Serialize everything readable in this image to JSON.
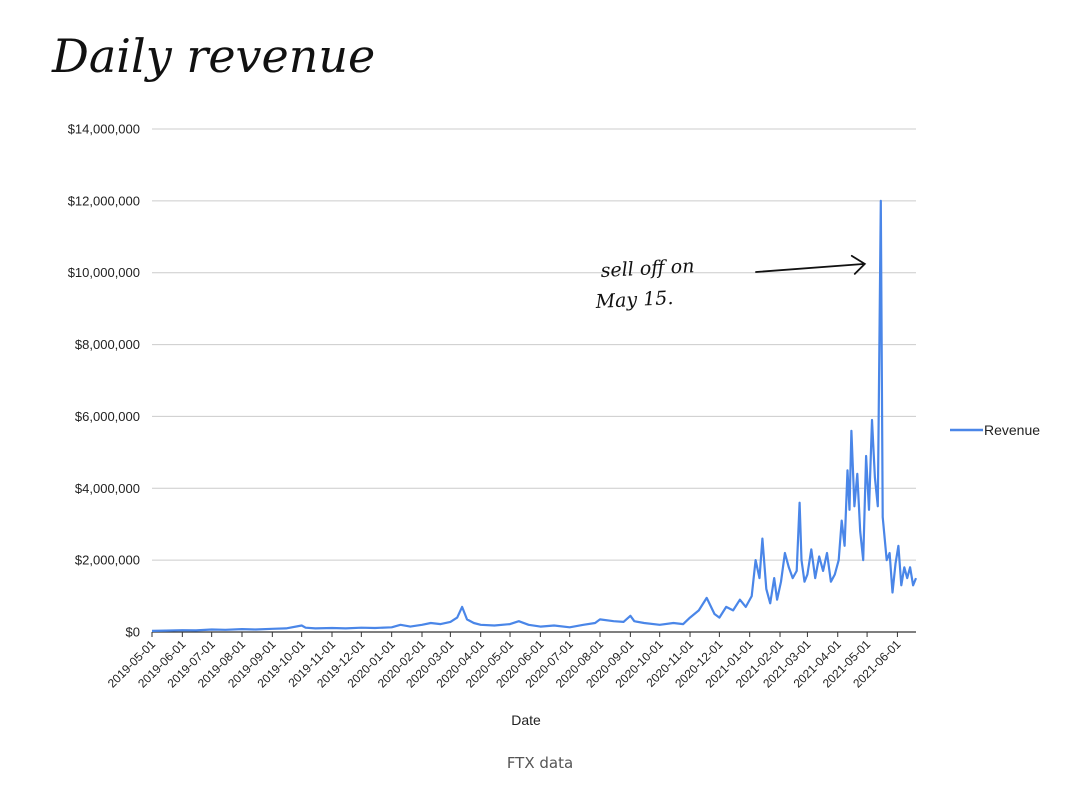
{
  "caption": "FTX data",
  "chart_data": {
    "type": "line",
    "title": "Daily revenue",
    "xlabel": "Date",
    "ylabel": "",
    "ylim": [
      0,
      14000000
    ],
    "yticks": [
      0,
      2000000,
      4000000,
      6000000,
      8000000,
      10000000,
      12000000,
      14000000
    ],
    "ytick_labels": [
      "$0",
      "$2,000,000",
      "$4,000,000",
      "$6,000,000",
      "$8,000,000",
      "$10,000,000",
      "$12,000,000",
      "$14,000,000"
    ],
    "xlim": [
      "2019-05-01",
      "2021-06-20"
    ],
    "xtick_labels": [
      "2019-05-01",
      "2019-06-01",
      "2019-07-01",
      "2019-08-01",
      "2019-09-01",
      "2019-10-01",
      "2019-11-01",
      "2019-12-01",
      "2020-01-01",
      "2020-02-01",
      "2020-03-01",
      "2020-04-01",
      "2020-05-01",
      "2020-06-01",
      "2020-07-01",
      "2020-08-01",
      "2020-09-01",
      "2020-10-01",
      "2020-11-01",
      "2020-12-01",
      "2021-01-01",
      "2021-02-01",
      "2021-03-01",
      "2021-04-01",
      "2021-05-01",
      "2021-06-01"
    ],
    "grid": true,
    "legend_position": "right",
    "annotation": {
      "text_lines": [
        "sell off on",
        "May 15."
      ],
      "points_to": [
        "2021-05-15",
        12000000
      ]
    },
    "series": [
      {
        "name": "Revenue",
        "color": "#4a86e8",
        "x": [
          "2019-05-01",
          "2019-05-15",
          "2019-06-01",
          "2019-06-15",
          "2019-07-01",
          "2019-07-15",
          "2019-08-01",
          "2019-08-15",
          "2019-09-01",
          "2019-09-15",
          "2019-10-01",
          "2019-10-05",
          "2019-10-15",
          "2019-11-01",
          "2019-11-15",
          "2019-12-01",
          "2019-12-15",
          "2020-01-01",
          "2020-01-10",
          "2020-01-20",
          "2020-02-01",
          "2020-02-10",
          "2020-02-20",
          "2020-03-01",
          "2020-03-08",
          "2020-03-13",
          "2020-03-18",
          "2020-03-25",
          "2020-04-01",
          "2020-04-15",
          "2020-05-01",
          "2020-05-10",
          "2020-05-20",
          "2020-06-01",
          "2020-06-15",
          "2020-07-01",
          "2020-07-15",
          "2020-07-27",
          "2020-08-01",
          "2020-08-15",
          "2020-08-25",
          "2020-09-01",
          "2020-09-05",
          "2020-09-15",
          "2020-10-01",
          "2020-10-15",
          "2020-10-25",
          "2020-11-01",
          "2020-11-10",
          "2020-11-18",
          "2020-11-26",
          "2020-12-01",
          "2020-12-08",
          "2020-12-15",
          "2020-12-22",
          "2020-12-28",
          "2021-01-03",
          "2021-01-07",
          "2021-01-11",
          "2021-01-14",
          "2021-01-18",
          "2021-01-22",
          "2021-01-26",
          "2021-01-29",
          "2021-02-02",
          "2021-02-06",
          "2021-02-10",
          "2021-02-14",
          "2021-02-18",
          "2021-02-21",
          "2021-02-23",
          "2021-02-26",
          "2021-03-01",
          "2021-03-05",
          "2021-03-09",
          "2021-03-13",
          "2021-03-17",
          "2021-03-21",
          "2021-03-25",
          "2021-03-29",
          "2021-04-02",
          "2021-04-05",
          "2021-04-08",
          "2021-04-11",
          "2021-04-13",
          "2021-04-15",
          "2021-04-18",
          "2021-04-21",
          "2021-04-24",
          "2021-04-27",
          "2021-04-30",
          "2021-05-03",
          "2021-05-06",
          "2021-05-09",
          "2021-05-12",
          "2021-05-15",
          "2021-05-17",
          "2021-05-19",
          "2021-05-21",
          "2021-05-24",
          "2021-05-27",
          "2021-05-30",
          "2021-06-02",
          "2021-06-05",
          "2021-06-08",
          "2021-06-11",
          "2021-06-14",
          "2021-06-17",
          "2021-06-20"
        ],
        "values": [
          30000,
          40000,
          50000,
          45000,
          70000,
          60000,
          80000,
          70000,
          90000,
          100000,
          180000,
          120000,
          100000,
          110000,
          100000,
          120000,
          110000,
          130000,
          200000,
          150000,
          200000,
          250000,
          220000,
          280000,
          400000,
          700000,
          350000,
          250000,
          200000,
          180000,
          220000,
          300000,
          200000,
          150000,
          180000,
          130000,
          200000,
          250000,
          350000,
          300000,
          280000,
          450000,
          300000,
          250000,
          200000,
          250000,
          220000,
          400000,
          600000,
          950000,
          500000,
          400000,
          700000,
          600000,
          900000,
          700000,
          1000000,
          2000000,
          1500000,
          2600000,
          1200000,
          800000,
          1500000,
          900000,
          1400000,
          2200000,
          1800000,
          1500000,
          1700000,
          3600000,
          2000000,
          1400000,
          1600000,
          2300000,
          1500000,
          2100000,
          1700000,
          2200000,
          1400000,
          1600000,
          2000000,
          3100000,
          2400000,
          4500000,
          3400000,
          5600000,
          3500000,
          4400000,
          2800000,
          2000000,
          4900000,
          3400000,
          5900000,
          4300000,
          3500000,
          12000000,
          3200000,
          2600000,
          2000000,
          2200000,
          1100000,
          1900000,
          2400000,
          1300000,
          1800000,
          1500000,
          1800000,
          1300000,
          1500000
        ]
      }
    ]
  }
}
